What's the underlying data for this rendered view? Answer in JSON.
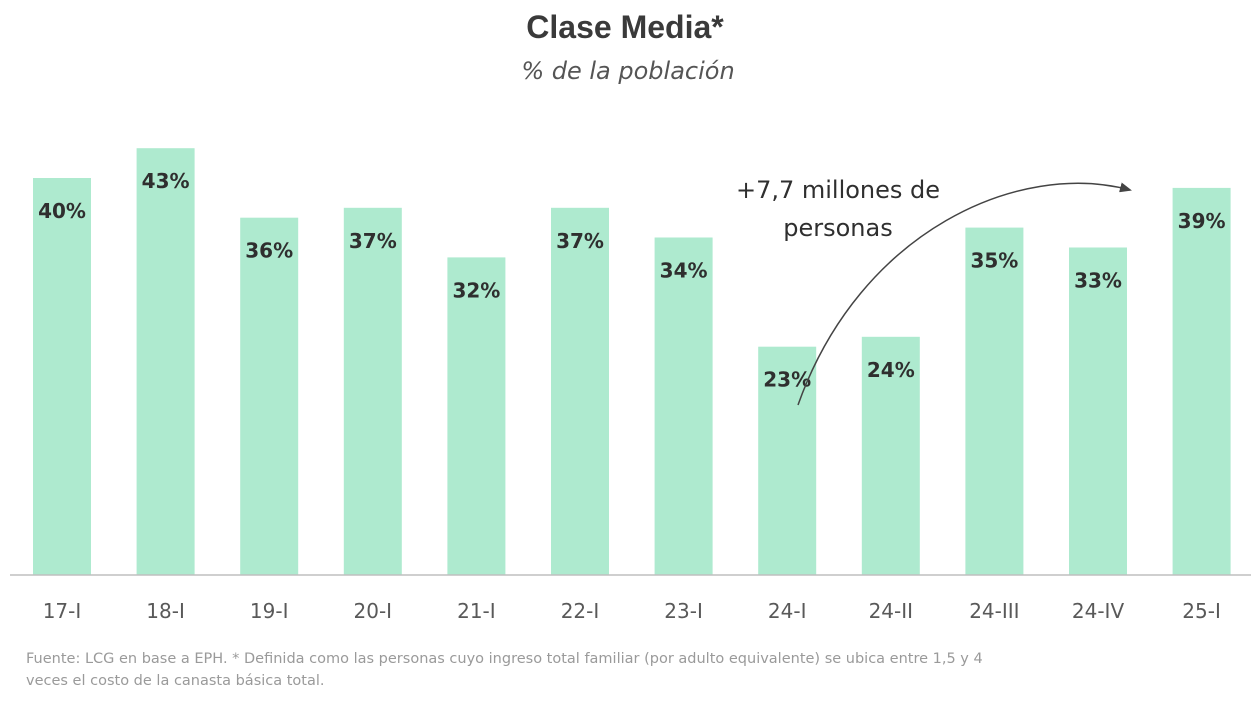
{
  "chart_data": {
    "type": "bar",
    "title": "Clase Media*",
    "subtitle": "% de la población",
    "categories": [
      "17-I",
      "18-I",
      "19-I",
      "20-I",
      "21-I",
      "22-I",
      "23-I",
      "24-I",
      "24-II",
      "24-III",
      "24-IV",
      "25-I"
    ],
    "values": [
      40,
      43,
      36,
      37,
      32,
      37,
      34,
      23,
      24,
      35,
      33,
      39
    ],
    "data_labels": [
      "40%",
      "43%",
      "36%",
      "37%",
      "32%",
      "37%",
      "34%",
      "23%",
      "24%",
      "35%",
      "33%",
      "39%"
    ],
    "ylim": [
      0,
      45
    ],
    "grid": false,
    "bar_color": "#aeeacf",
    "annotation": {
      "lines": [
        "+7,7 millones de",
        "personas"
      ],
      "from_category": "24-I",
      "to_category": "25-I"
    },
    "footnote": [
      "Fuente: LCG en base a EPH. * Definida como las personas cuyo ingreso total familiar (por adulto equivalente) se ubica entre 1,5 y 4",
      "veces el costo de la canasta básica total."
    ]
  }
}
